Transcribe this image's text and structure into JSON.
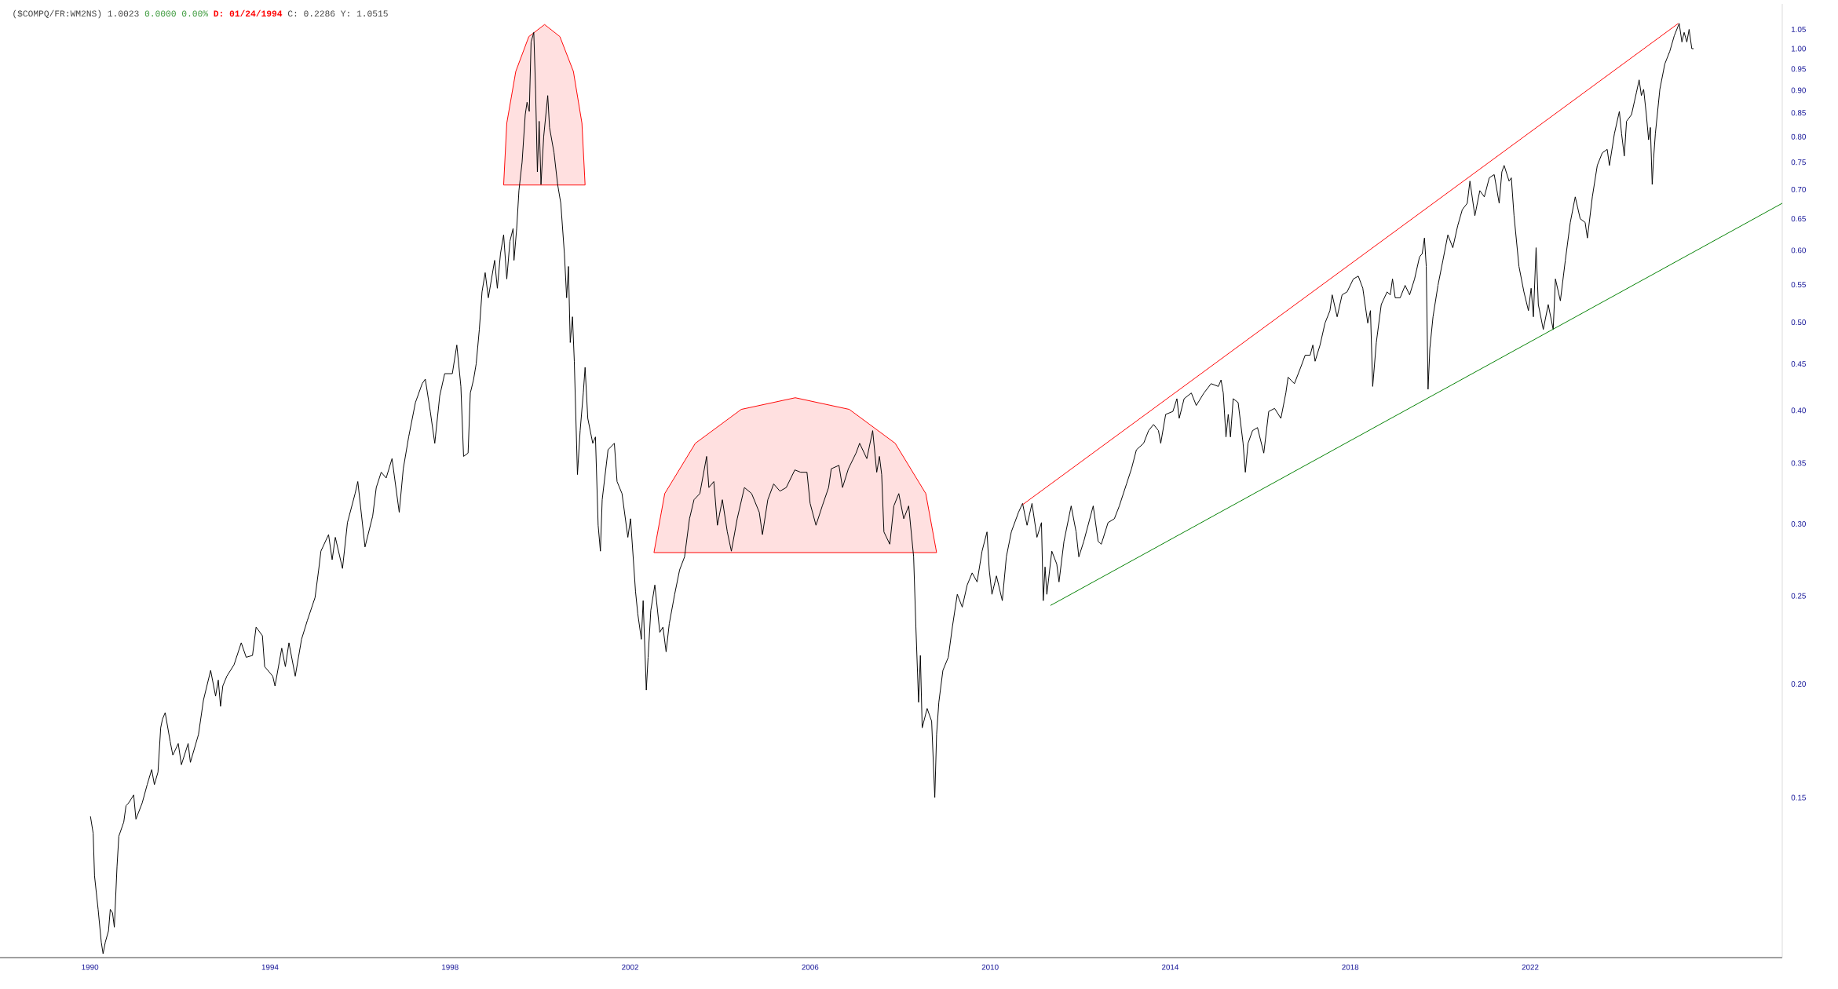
{
  "chart_data": {
    "type": "line",
    "title": "($COMPQ/FR:WM2NS) 1.0023",
    "subtitle": "0.0000 0.00%",
    "annotations": [
      "D: 01/24/1994",
      "C: 0.2286 Y: 1.0515"
    ],
    "log": "y",
    "xlim": [
      1988,
      2027.6
    ],
    "ylim": [
      0.1,
      1.12
    ],
    "xticks": [
      1990,
      1994,
      1998,
      2002,
      2006,
      2010,
      2014,
      2018,
      2022
    ],
    "yticks": [
      0.15,
      {
        "value": 0.2,
        "label": "0.20"
      },
      0.25,
      {
        "value": 0.3,
        "label": "0.30"
      },
      0.35,
      {
        "value": 0.4,
        "label": "0.40"
      },
      0.45,
      {
        "value": 0.5,
        "label": "0.50"
      },
      0.55,
      {
        "value": 0.6,
        "label": "0.60"
      },
      0.65,
      {
        "value": 0.7,
        "label": "0.70"
      },
      0.75,
      {
        "value": 0.8,
        "label": "0.80"
      },
      0.85,
      {
        "value": 0.9,
        "label": "0.90"
      },
      0.95,
      {
        "value": 1.0,
        "label": "1.00"
      },
      1.05
    ],
    "series": [
      {
        "type": "area",
        "color": "#ff0000",
        "x": [
          1999.19,
          1999.26,
          1999.46,
          1999.75,
          2000.1,
          2000.44,
          2000.74,
          2000.93,
          2001.0
        ],
        "values": [
          0.708,
          0.828,
          0.944,
          1.031,
          1.063,
          1.031,
          0.944,
          0.828,
          0.708
        ]
      },
      {
        "type": "area",
        "color": "#ff0000",
        "x": [
          2002.53,
          2002.77,
          2003.45,
          2004.47,
          2005.67,
          2006.87,
          2007.89,
          2008.57,
          2008.81
        ],
        "values": [
          0.279,
          0.324,
          0.368,
          0.401,
          0.413,
          0.401,
          0.368,
          0.324,
          0.279
        ]
      },
      {
        "type": "line",
        "color": "#000000",
        "x": [
          1990.01,
          1990.07,
          1990.1,
          1990.18,
          1990.25,
          1990.29,
          1990.34,
          1990.41,
          1990.45,
          1990.5,
          1990.54,
          1990.6,
          1990.64,
          1990.75,
          1990.8,
          1990.86,
          1990.97,
          1991.02,
          1991.16,
          1991.27,
          1991.37,
          1991.43,
          1991.51,
          1991.57,
          1991.61,
          1991.67,
          1991.78,
          1991.84,
          1991.96,
          1992.03,
          1992.18,
          1992.23,
          1992.41,
          1992.52,
          1992.68,
          1992.79,
          1992.85,
          1992.9,
          1992.95,
          1993.04,
          1993.2,
          1993.36,
          1993.47,
          1993.61,
          1993.69,
          1993.83,
          1993.88,
          1994.06,
          1994.11,
          1994.26,
          1994.34,
          1994.42,
          1994.56,
          1994.7,
          1994.83,
          1995.0,
          1995.08,
          1995.13,
          1995.3,
          1995.38,
          1995.45,
          1995.61,
          1995.72,
          1995.89,
          1995.95,
          1996.11,
          1996.28,
          1996.36,
          1996.47,
          1996.58,
          1996.71,
          1996.87,
          1996.96,
          1997.08,
          1997.23,
          1997.38,
          1997.45,
          1997.56,
          1997.66,
          1997.77,
          1997.88,
          1998.05,
          1998.15,
          1998.24,
          1998.3,
          1998.4,
          1998.45,
          1998.52,
          1998.58,
          1998.65,
          1998.71,
          1998.78,
          1998.85,
          1998.99,
          1999.05,
          1999.12,
          1999.19,
          1999.26,
          1999.33,
          1999.4,
          1999.42,
          1999.48,
          1999.53,
          1999.6,
          1999.67,
          1999.71,
          1999.76,
          1999.8,
          1999.86,
          1999.9,
          1999.94,
          1999.98,
          2000.02,
          2000.08,
          2000.17,
          2000.21,
          2000.31,
          2000.39,
          2000.46,
          2000.54,
          2000.59,
          2000.63,
          2000.67,
          2000.72,
          2000.76,
          2000.83,
          2000.89,
          2000.96,
          2001.0,
          2001.06,
          2001.17,
          2001.23,
          2001.29,
          2001.34,
          2001.38,
          2001.51,
          2001.65,
          2001.71,
          2001.82,
          2001.95,
          2002.01,
          2002.12,
          2002.17,
          2002.25,
          2002.29,
          2002.36,
          2002.4,
          2002.46,
          2002.55,
          2002.66,
          2002.73,
          2002.8,
          2002.87,
          2002.99,
          2003.1,
          2003.21,
          2003.32,
          2003.42,
          2003.55,
          2003.7,
          2003.75,
          2003.86,
          2003.94,
          2004.05,
          2004.16,
          2004.25,
          2004.38,
          2004.54,
          2004.7,
          2004.87,
          2004.94,
          2005.06,
          2005.19,
          2005.33,
          2005.47,
          2005.66,
          2005.79,
          2005.93,
          2006.0,
          2006.13,
          2006.27,
          2006.41,
          2006.47,
          2006.64,
          2006.72,
          2006.85,
          2007.02,
          2007.1,
          2007.26,
          2007.39,
          2007.48,
          2007.54,
          2007.59,
          2007.64,
          2007.77,
          2007.86,
          2007.97,
          2008.08,
          2008.19,
          2008.3,
          2008.35,
          2008.41,
          2008.45,
          2008.49,
          2008.6,
          2008.7,
          2008.77,
          2008.81,
          2008.86,
          2008.95,
          2009.07,
          2009.16,
          2009.27,
          2009.38,
          2009.49,
          2009.6,
          2009.71,
          2009.82,
          2009.93,
          2009.98,
          2010.04,
          2010.14,
          2010.27,
          2010.36,
          2010.47,
          2010.63,
          2010.72,
          2010.82,
          2010.93,
          2011.04,
          2011.14,
          2011.18,
          2011.22,
          2011.26,
          2011.37,
          2011.48,
          2011.53,
          2011.64,
          2011.8,
          2011.91,
          2011.97,
          2012.08,
          2012.29,
          2012.4,
          2012.47,
          2012.62,
          2012.76,
          2012.87,
          2013.03,
          2013.14,
          2013.25,
          2013.41,
          2013.52,
          2013.63,
          2013.74,
          2013.79,
          2013.9,
          2014.06,
          2014.15,
          2014.2,
          2014.31,
          2014.47,
          2014.58,
          2014.75,
          2014.91,
          2015.07,
          2015.13,
          2015.18,
          2015.24,
          2015.29,
          2015.34,
          2015.4,
          2015.51,
          2015.62,
          2015.67,
          2015.73,
          2015.83,
          2015.94,
          2016.08,
          2016.19,
          2016.32,
          2016.46,
          2016.57,
          2016.62,
          2016.76,
          2016.9,
          2017.0,
          2017.11,
          2017.17,
          2017.22,
          2017.33,
          2017.44,
          2017.55,
          2017.6,
          2017.71,
          2017.82,
          2017.93,
          2018.07,
          2018.18,
          2018.28,
          2018.39,
          2018.45,
          2018.5,
          2018.58,
          2018.69,
          2018.82,
          2018.89,
          2018.94,
          2019.0,
          2019.11,
          2019.22,
          2019.32,
          2019.43,
          2019.54,
          2019.6,
          2019.65,
          2019.69,
          2019.73,
          2019.77,
          2019.84,
          2019.95,
          2020.06,
          2020.17,
          2020.28,
          2020.39,
          2020.49,
          2020.6,
          2020.66,
          2020.77,
          2020.88,
          2020.98,
          2021.09,
          2021.2,
          2021.31,
          2021.37,
          2021.42,
          2021.53,
          2021.58,
          2021.64,
          2021.75,
          2021.86,
          2021.96,
          2022.02,
          2022.07,
          2022.13,
          2022.18,
          2022.29,
          2022.4,
          2022.51,
          2022.56,
          2022.67,
          2022.78,
          2022.89,
          2023.0,
          2023.11,
          2023.22,
          2023.27,
          2023.38,
          2023.49,
          2023.6,
          2023.71,
          2023.76,
          2023.87,
          2023.98,
          2024.03,
          2024.09,
          2024.14,
          2024.25,
          2024.36,
          2024.42,
          2024.47,
          2024.52,
          2024.58,
          2024.63,
          2024.67,
          2024.71,
          2024.74,
          2024.78,
          2024.88,
          2024.99,
          2025.1,
          2025.2,
          2025.31,
          2025.37,
          2025.42,
          2025.48,
          2025.53,
          2025.59,
          2025.63
        ],
        "values": [
          0.143,
          0.137,
          0.123,
          0.113,
          0.104,
          0.101,
          0.104,
          0.107,
          0.113,
          0.112,
          0.108,
          0.126,
          0.136,
          0.141,
          0.147,
          0.148,
          0.151,
          0.142,
          0.148,
          0.155,
          0.161,
          0.155,
          0.16,
          0.179,
          0.183,
          0.186,
          0.173,
          0.167,
          0.172,
          0.163,
          0.172,
          0.164,
          0.176,
          0.192,
          0.207,
          0.194,
          0.202,
          0.189,
          0.199,
          0.204,
          0.21,
          0.222,
          0.214,
          0.215,
          0.231,
          0.226,
          0.209,
          0.204,
          0.199,
          0.219,
          0.209,
          0.222,
          0.204,
          0.224,
          0.235,
          0.249,
          0.267,
          0.28,
          0.292,
          0.274,
          0.29,
          0.268,
          0.301,
          0.324,
          0.334,
          0.283,
          0.306,
          0.329,
          0.342,
          0.337,
          0.354,
          0.309,
          0.345,
          0.374,
          0.408,
          0.428,
          0.433,
          0.399,
          0.368,
          0.415,
          0.439,
          0.439,
          0.472,
          0.425,
          0.356,
          0.359,
          0.418,
          0.432,
          0.45,
          0.491,
          0.54,
          0.567,
          0.532,
          0.585,
          0.545,
          0.595,
          0.624,
          0.558,
          0.614,
          0.634,
          0.585,
          0.634,
          0.698,
          0.75,
          0.846,
          0.873,
          0.853,
          1.017,
          1.042,
          0.902,
          0.732,
          0.832,
          0.709,
          0.8,
          0.888,
          0.819,
          0.768,
          0.709,
          0.676,
          0.595,
          0.532,
          0.576,
          0.475,
          0.507,
          0.453,
          0.34,
          0.38,
          0.418,
          0.446,
          0.392,
          0.368,
          0.374,
          0.299,
          0.28,
          0.319,
          0.362,
          0.368,
          0.334,
          0.324,
          0.29,
          0.304,
          0.253,
          0.239,
          0.224,
          0.247,
          0.197,
          0.214,
          0.241,
          0.257,
          0.228,
          0.231,
          0.217,
          0.233,
          0.251,
          0.267,
          0.276,
          0.304,
          0.319,
          0.324,
          0.356,
          0.329,
          0.334,
          0.299,
          0.319,
          0.294,
          0.28,
          0.304,
          0.329,
          0.324,
          0.309,
          0.292,
          0.319,
          0.332,
          0.326,
          0.329,
          0.344,
          0.342,
          0.342,
          0.316,
          0.299,
          0.314,
          0.329,
          0.345,
          0.348,
          0.329,
          0.345,
          0.359,
          0.368,
          0.354,
          0.38,
          0.342,
          0.356,
          0.34,
          0.294,
          0.285,
          0.314,
          0.324,
          0.304,
          0.314,
          0.276,
          0.231,
          0.191,
          0.215,
          0.179,
          0.188,
          0.182,
          0.15,
          0.176,
          0.191,
          0.207,
          0.214,
          0.231,
          0.251,
          0.243,
          0.257,
          0.265,
          0.259,
          0.28,
          0.294,
          0.267,
          0.251,
          0.263,
          0.247,
          0.276,
          0.294,
          0.309,
          0.316,
          0.299,
          0.316,
          0.29,
          0.301,
          0.247,
          0.269,
          0.251,
          0.28,
          0.271,
          0.259,
          0.287,
          0.314,
          0.294,
          0.276,
          0.287,
          0.314,
          0.287,
          0.285,
          0.301,
          0.304,
          0.314,
          0.332,
          0.345,
          0.362,
          0.368,
          0.38,
          0.386,
          0.38,
          0.368,
          0.396,
          0.399,
          0.412,
          0.392,
          0.412,
          0.418,
          0.405,
          0.418,
          0.428,
          0.425,
          0.432,
          0.418,
          0.374,
          0.396,
          0.374,
          0.412,
          0.408,
          0.368,
          0.342,
          0.368,
          0.38,
          0.383,
          0.359,
          0.399,
          0.402,
          0.392,
          0.418,
          0.435,
          0.428,
          0.446,
          0.46,
          0.46,
          0.472,
          0.453,
          0.472,
          0.499,
          0.515,
          0.536,
          0.507,
          0.536,
          0.54,
          0.558,
          0.562,
          0.545,
          0.499,
          0.515,
          0.425,
          0.475,
          0.523,
          0.54,
          0.536,
          0.558,
          0.532,
          0.532,
          0.549,
          0.536,
          0.558,
          0.59,
          0.595,
          0.619,
          0.576,
          0.422,
          0.468,
          0.507,
          0.549,
          0.585,
          0.624,
          0.604,
          0.639,
          0.665,
          0.676,
          0.715,
          0.655,
          0.698,
          0.687,
          0.721,
          0.727,
          0.676,
          0.732,
          0.744,
          0.715,
          0.721,
          0.655,
          0.576,
          0.54,
          0.515,
          0.545,
          0.507,
          0.604,
          0.523,
          0.491,
          0.523,
          0.491,
          0.558,
          0.528,
          0.585,
          0.644,
          0.687,
          0.65,
          0.644,
          0.619,
          0.687,
          0.744,
          0.768,
          0.775,
          0.744,
          0.806,
          0.853,
          0.806,
          0.762,
          0.832,
          0.846,
          0.895,
          0.924,
          0.888,
          0.902,
          0.846,
          0.794,
          0.819,
          0.709,
          0.756,
          0.806,
          0.902,
          0.962,
          0.993,
          1.033,
          1.066,
          1.017,
          1.042,
          1.017,
          1.05,
          1.0,
          1.0
        ]
      },
      {
        "type": "line",
        "color": "#ff0000",
        "x": [
          2010.72,
          2025.29
        ],
        "values": [
          0.315,
          1.066
        ]
      },
      {
        "type": "line",
        "color": "#008000",
        "x": [
          2011.34,
          2027.6
        ],
        "values": [
          0.244,
          0.676
        ]
      }
    ]
  }
}
